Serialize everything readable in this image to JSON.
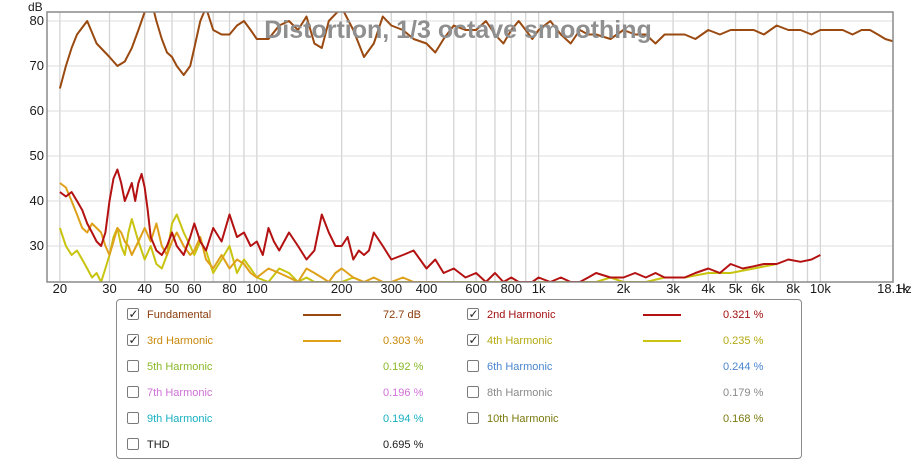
{
  "chart_data": {
    "type": "line",
    "title": "Distortion, 1/3 octave smoothing",
    "y_unit": "dB",
    "x_unit": "Hz",
    "x_scale": "log",
    "xlim": [
      18,
      18100
    ],
    "ylim": [
      22,
      82
    ],
    "x_ticks": [
      20,
      30,
      40,
      50,
      60,
      80,
      100,
      200,
      300,
      400,
      600,
      800,
      1000,
      2000,
      3000,
      4000,
      5000,
      6000,
      8000,
      10000,
      18100
    ],
    "x_tick_labels": [
      "20",
      "30",
      "40",
      "50",
      "60",
      "80",
      "100",
      "200",
      "300",
      "400",
      "600",
      "800",
      "1k",
      "2k",
      "3k",
      "4k",
      "5k",
      "6k",
      "8k",
      "10k",
      "18.1k"
    ],
    "y_ticks": [
      30,
      40,
      50,
      60,
      70,
      80
    ],
    "y_tick_labels": [
      "30",
      "40",
      "50",
      "60",
      "70",
      "80"
    ],
    "grid": true,
    "series": [
      {
        "name": "Fundamental",
        "color": "#9a4a10",
        "x": [
          20,
          21,
          22,
          23,
          25,
          27,
          30,
          32,
          34,
          36,
          38,
          40,
          42,
          44,
          46,
          48,
          50,
          52,
          55,
          58,
          60,
          63,
          66,
          70,
          75,
          80,
          85,
          90,
          95,
          100,
          110,
          120,
          130,
          140,
          150,
          160,
          170,
          180,
          200,
          220,
          240,
          260,
          280,
          300,
          330,
          360,
          400,
          430,
          460,
          500,
          550,
          600,
          650,
          700,
          750,
          800,
          850,
          900,
          950,
          1000,
          1100,
          1200,
          1300,
          1400,
          1500,
          1600,
          1800,
          2000,
          2200,
          2400,
          2600,
          2800,
          3000,
          3300,
          3600,
          4000,
          4400,
          4800,
          5300,
          5800,
          6300,
          7000,
          7700,
          8500,
          9300,
          10000,
          11000,
          12000,
          13000,
          14000,
          15000,
          16000,
          17000,
          18100
        ],
        "values": [
          65,
          70,
          74,
          77,
          80,
          75,
          72,
          70,
          71,
          74,
          78,
          82,
          85,
          80,
          76,
          73,
          72,
          70,
          68,
          70,
          74,
          80,
          83,
          78,
          77,
          77,
          79,
          80,
          78,
          76,
          76,
          79,
          80,
          78,
          81,
          75,
          74,
          80,
          83,
          78,
          72,
          75,
          81,
          79,
          78,
          76,
          75,
          73,
          76,
          79,
          78,
          78,
          80,
          77,
          75,
          78,
          80,
          78,
          76,
          78,
          80,
          77,
          75,
          78,
          77,
          77,
          76,
          78,
          77,
          77,
          75,
          77,
          77,
          77,
          76,
          78,
          77,
          78,
          78,
          78,
          77,
          79,
          78,
          78,
          77,
          78,
          78,
          78,
          77,
          78,
          78,
          77,
          76,
          75.5
        ]
      },
      {
        "name": "2nd Harmonic",
        "color": "#b41212",
        "x": [
          20,
          21,
          22,
          23,
          24,
          25,
          26,
          27,
          28,
          29,
          30,
          31,
          32,
          33,
          34,
          35,
          36,
          37,
          38,
          39,
          40,
          41,
          42,
          44,
          46,
          48,
          50,
          52,
          55,
          58,
          60,
          63,
          66,
          70,
          75,
          80,
          85,
          90,
          95,
          100,
          105,
          110,
          115,
          120,
          130,
          140,
          150,
          160,
          170,
          180,
          190,
          200,
          210,
          220,
          230,
          240,
          250,
          260,
          280,
          300,
          330,
          360,
          400,
          430,
          460,
          500,
          550,
          600,
          650,
          700,
          750,
          800,
          850,
          900,
          950,
          1000,
          1100,
          1200,
          1300,
          1400,
          1500,
          1600,
          1800,
          2000,
          2200,
          2400,
          2600,
          2800,
          3000,
          3300,
          3600,
          4000,
          4400,
          4800,
          5300,
          5800,
          6300,
          7000,
          7700,
          8500,
          9300,
          10000
        ],
        "values": [
          42,
          41,
          42,
          40,
          38,
          35,
          33,
          31,
          30,
          33,
          40,
          45,
          47,
          44,
          40,
          42,
          44,
          40,
          44,
          46,
          43,
          38,
          32,
          29,
          28,
          30,
          33,
          30,
          28,
          32,
          35,
          31,
          29,
          34,
          31,
          37,
          32,
          33,
          30,
          31,
          28,
          34,
          31,
          29,
          33,
          30,
          27,
          29,
          37,
          33,
          30,
          30,
          32,
          27,
          29,
          28,
          29,
          33,
          30,
          27,
          28,
          29,
          25,
          27,
          24,
          25,
          23,
          24,
          22,
          24,
          22,
          23,
          22,
          22,
          22,
          23,
          22,
          23,
          22,
          22,
          23,
          24,
          23,
          23,
          24,
          23,
          24,
          23,
          23,
          23,
          24,
          25,
          24,
          26,
          25,
          25.5,
          26,
          26,
          27,
          26.5,
          27,
          28
        ]
      },
      {
        "name": "3rd Harmonic",
        "color": "#dfa01a",
        "x": [
          20,
          21,
          22,
          23,
          24,
          25,
          26,
          27,
          28,
          29,
          30,
          31,
          32,
          33,
          34,
          35,
          36,
          38,
          40,
          42,
          44,
          46,
          48,
          50,
          52,
          55,
          58,
          60,
          63,
          66,
          70,
          75,
          80,
          85,
          90,
          95,
          100,
          110,
          120,
          130,
          140,
          150,
          160,
          170,
          180,
          190,
          200,
          220,
          240,
          260,
          280,
          300,
          330,
          360,
          400,
          430,
          460
        ],
        "values": [
          44,
          43,
          40,
          37,
          34,
          33,
          35,
          34,
          33,
          30,
          28,
          31,
          34,
          33,
          31,
          30,
          28,
          31,
          34,
          31,
          35,
          30,
          28,
          31,
          33,
          30,
          28,
          29,
          32,
          27,
          25,
          28,
          25,
          27,
          26,
          24,
          23,
          25,
          24,
          23,
          22,
          25,
          24,
          23,
          22,
          24,
          25,
          23,
          22,
          23,
          22,
          22,
          23,
          22,
          22,
          22,
          22
        ]
      },
      {
        "name": "4th Harmonic",
        "color": "#c8c410",
        "x": [
          20,
          21,
          22,
          23,
          24,
          25,
          26,
          27,
          28,
          29,
          30,
          31,
          32,
          33,
          34,
          35,
          36,
          38,
          40,
          42,
          44,
          46,
          48,
          50,
          52,
          55,
          58,
          60,
          63,
          66,
          70,
          75,
          80,
          85,
          90,
          95,
          100,
          110,
          120,
          130,
          140,
          150,
          160,
          170,
          180,
          200,
          220,
          240,
          260,
          280,
          300,
          330,
          360,
          400,
          430,
          460,
          500,
          550,
          600,
          650,
          700,
          750,
          800,
          900,
          1000,
          1200,
          1400,
          1600,
          1800,
          2000,
          2400,
          2800,
          3300,
          4000,
          4800,
          5800,
          7000
        ],
        "values": [
          34,
          30,
          28,
          29,
          27,
          25,
          23,
          24,
          22,
          25,
          28,
          32,
          34,
          30,
          28,
          33,
          36,
          31,
          27,
          30,
          26,
          25,
          28,
          35,
          37,
          33,
          30,
          28,
          31,
          29,
          24,
          27,
          30,
          24,
          27,
          25,
          23,
          22,
          25,
          24,
          22,
          23,
          22,
          22,
          22,
          22,
          23,
          22,
          22,
          22,
          22,
          22,
          22,
          22,
          22,
          22,
          22,
          22,
          22,
          22,
          22,
          22,
          22,
          22,
          22,
          22,
          22,
          22,
          23,
          22,
          22,
          23,
          23,
          24,
          24,
          25,
          26
        ]
      }
    ],
    "legend": {
      "rows": [
        {
          "name": "Fundamental",
          "checked": "✓",
          "value": "72.7 dB",
          "color": "#8b3c0c",
          "swatch": "#9a4a10"
        },
        {
          "name": "2nd Harmonic",
          "checked": "✓",
          "value": "0.321 %",
          "color": "#a21010",
          "swatch": "#b41212"
        },
        {
          "name": "3rd Harmonic",
          "checked": "✓",
          "value": "0.303 %",
          "color": "#c8880a",
          "swatch": "#dfa01a"
        },
        {
          "name": "4th Harmonic",
          "checked": "✓",
          "value": "0.235 %",
          "color": "#b4aa10",
          "swatch": "#c8c410"
        },
        {
          "name": "5th Harmonic",
          "checked": "",
          "value": "0.192 %",
          "color": "#8ab828"
        },
        {
          "name": "6th Harmonic",
          "checked": "",
          "value": "0.244 %",
          "color": "#4a86d0"
        },
        {
          "name": "7th Harmonic",
          "checked": "",
          "value": "0.196 %",
          "color": "#d070d8"
        },
        {
          "name": "8th Harmonic",
          "checked": "",
          "value": "0.179 %",
          "color": "#8a8a8a"
        },
        {
          "name": "9th Harmonic",
          "checked": "",
          "value": "0.194 %",
          "color": "#18b0c0"
        },
        {
          "name": "10th Harmonic",
          "checked": "",
          "value": "0.168 %",
          "color": "#7a7a10"
        },
        {
          "name": "THD",
          "checked": "",
          "value": "0.695 %",
          "color": "#1a1a1a"
        }
      ]
    }
  }
}
